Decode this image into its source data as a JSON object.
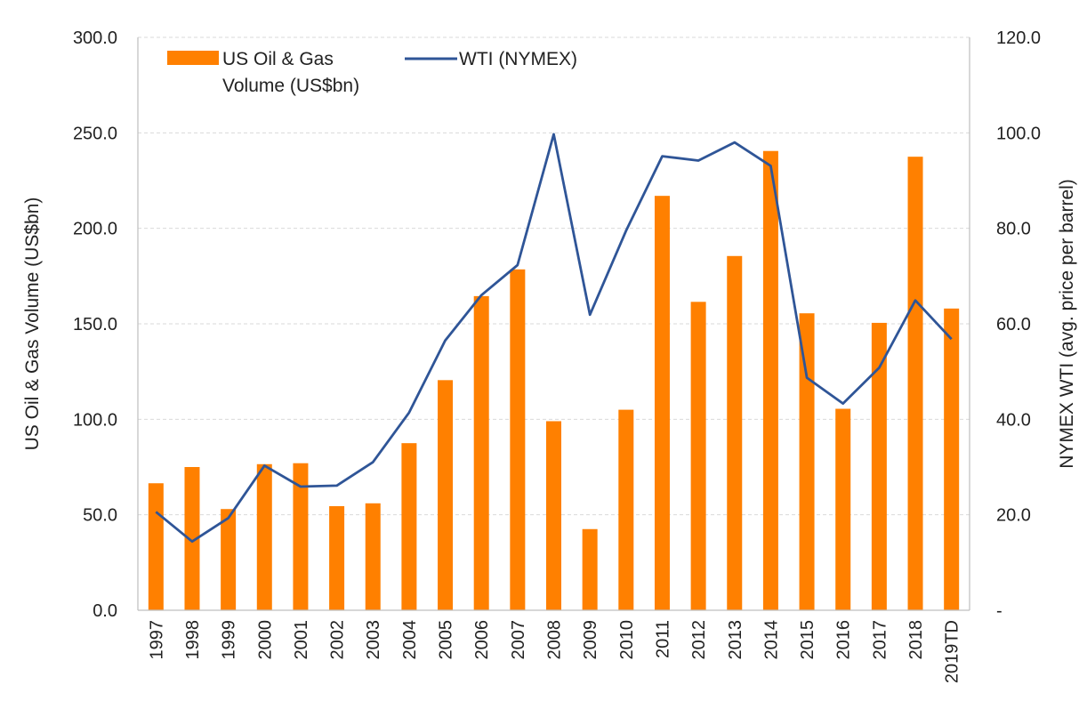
{
  "chart_data": {
    "type": "bar",
    "categories": [
      "1997",
      "1998",
      "1999",
      "2000",
      "2001",
      "2002",
      "2003",
      "2004",
      "2005",
      "2006",
      "2007",
      "2008",
      "2009",
      "2010",
      "2011",
      "2012",
      "2013",
      "2014",
      "2015",
      "2016",
      "2017",
      "2018",
      "2019TD"
    ],
    "series": [
      {
        "name": "US Oil & Gas Volume (US$bn)",
        "type": "bar",
        "axis": "left",
        "color": "#FF8000",
        "values": [
          66.5,
          75.0,
          53.0,
          76.5,
          77.0,
          54.5,
          56.0,
          87.5,
          120.5,
          164.5,
          178.5,
          99.0,
          42.5,
          105.0,
          217.0,
          161.5,
          185.5,
          240.5,
          155.5,
          105.5,
          150.5,
          237.5,
          158.0
        ]
      },
      {
        "name": "WTI (NYMEX)",
        "type": "line",
        "axis": "right",
        "color": "#2F5597",
        "values": [
          20.6,
          14.4,
          19.3,
          30.3,
          25.9,
          26.1,
          31.0,
          41.4,
          56.5,
          66.0,
          72.3,
          99.7,
          61.9,
          79.5,
          95.1,
          94.2,
          98.0,
          93.1,
          48.7,
          43.3,
          50.8,
          64.9,
          56.8
        ]
      }
    ],
    "ylabel": "US Oil & Gas Volume (US$bn)",
    "y2label": "NYMEX WTI (avg. price per barrel)",
    "ylim": [
      0,
      300
    ],
    "y2lim": [
      0,
      120
    ],
    "yticks": [
      "0.0",
      "50.0",
      "100.0",
      "150.0",
      "200.0",
      "250.0",
      "300.0"
    ],
    "y2ticks": [
      "-",
      "20.0",
      "40.0",
      "60.0",
      "80.0",
      "100.0",
      "120.0"
    ],
    "grid": true,
    "legend_position": "top-left",
    "legend": {
      "bar_label_line1": "US Oil & Gas",
      "bar_label_line2": "Volume (US$bn)",
      "line_label": "WTI (NYMEX)"
    }
  }
}
